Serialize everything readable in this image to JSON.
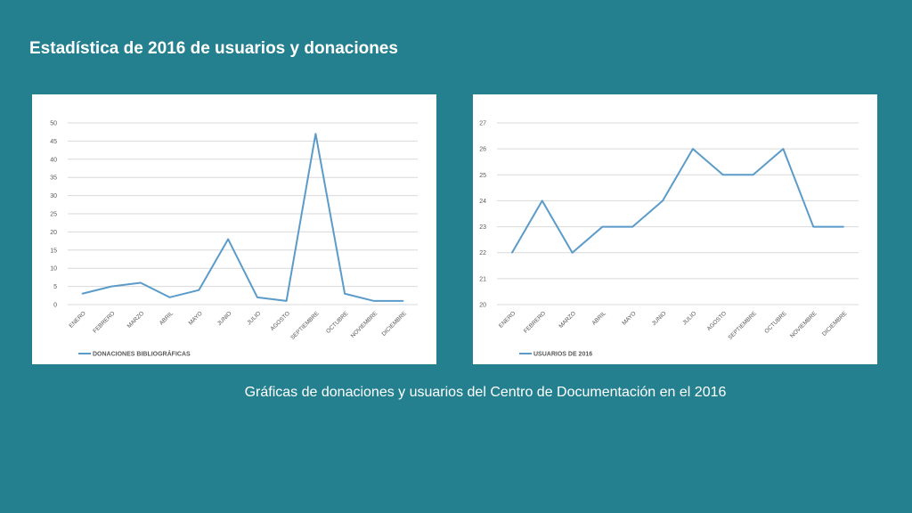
{
  "slide": {
    "title": "Estadística de 2016 de usuarios y donaciones",
    "caption": "Gráficas de donaciones y usuarios del Centro de Documentación en el 2016"
  },
  "colors": {
    "background": "#24808f",
    "panel": "#ffffff",
    "line": "#5b9bc9",
    "grid": "#d9d9d9",
    "axis_text": "#595959"
  },
  "chart_data": [
    {
      "type": "line",
      "categories": [
        "ENERO",
        "FEBRERO",
        "MARZO",
        "ABRIL",
        "MAYO",
        "JUNIO",
        "JULIO",
        "AGOSTO",
        "SEPTIEMBRE",
        "OCTUBRE",
        "NOVIEMBRE",
        "DICIEMBRE"
      ],
      "series": [
        {
          "name": "DONACIONES BIBLIOGRÁFICAS",
          "values": [
            3,
            5,
            6,
            2,
            4,
            18,
            2,
            1,
            47,
            3,
            1,
            1
          ]
        }
      ],
      "ylim": [
        0,
        50
      ],
      "yticks": [
        0,
        5,
        10,
        15,
        20,
        25,
        30,
        35,
        40,
        45,
        50
      ],
      "grid": true,
      "legend": "bottom-left"
    },
    {
      "type": "line",
      "categories": [
        "ENERO",
        "FEBRERO",
        "MARZO",
        "ABRIL",
        "MAYO",
        "JUNIO",
        "JULIO",
        "AGOSTO",
        "SEPTIEMBRE",
        "OCTUBRE",
        "NOVIEMBRE",
        "DICIEMBRE"
      ],
      "series": [
        {
          "name": "USUARIOS DE 2016",
          "values": [
            22,
            24,
            22,
            23,
            23,
            24,
            26,
            25,
            25,
            26,
            23,
            23
          ]
        }
      ],
      "ylim": [
        20,
        27
      ],
      "yticks": [
        20,
        21,
        22,
        23,
        24,
        25,
        26,
        27
      ],
      "grid": true,
      "legend": "bottom-left"
    }
  ]
}
